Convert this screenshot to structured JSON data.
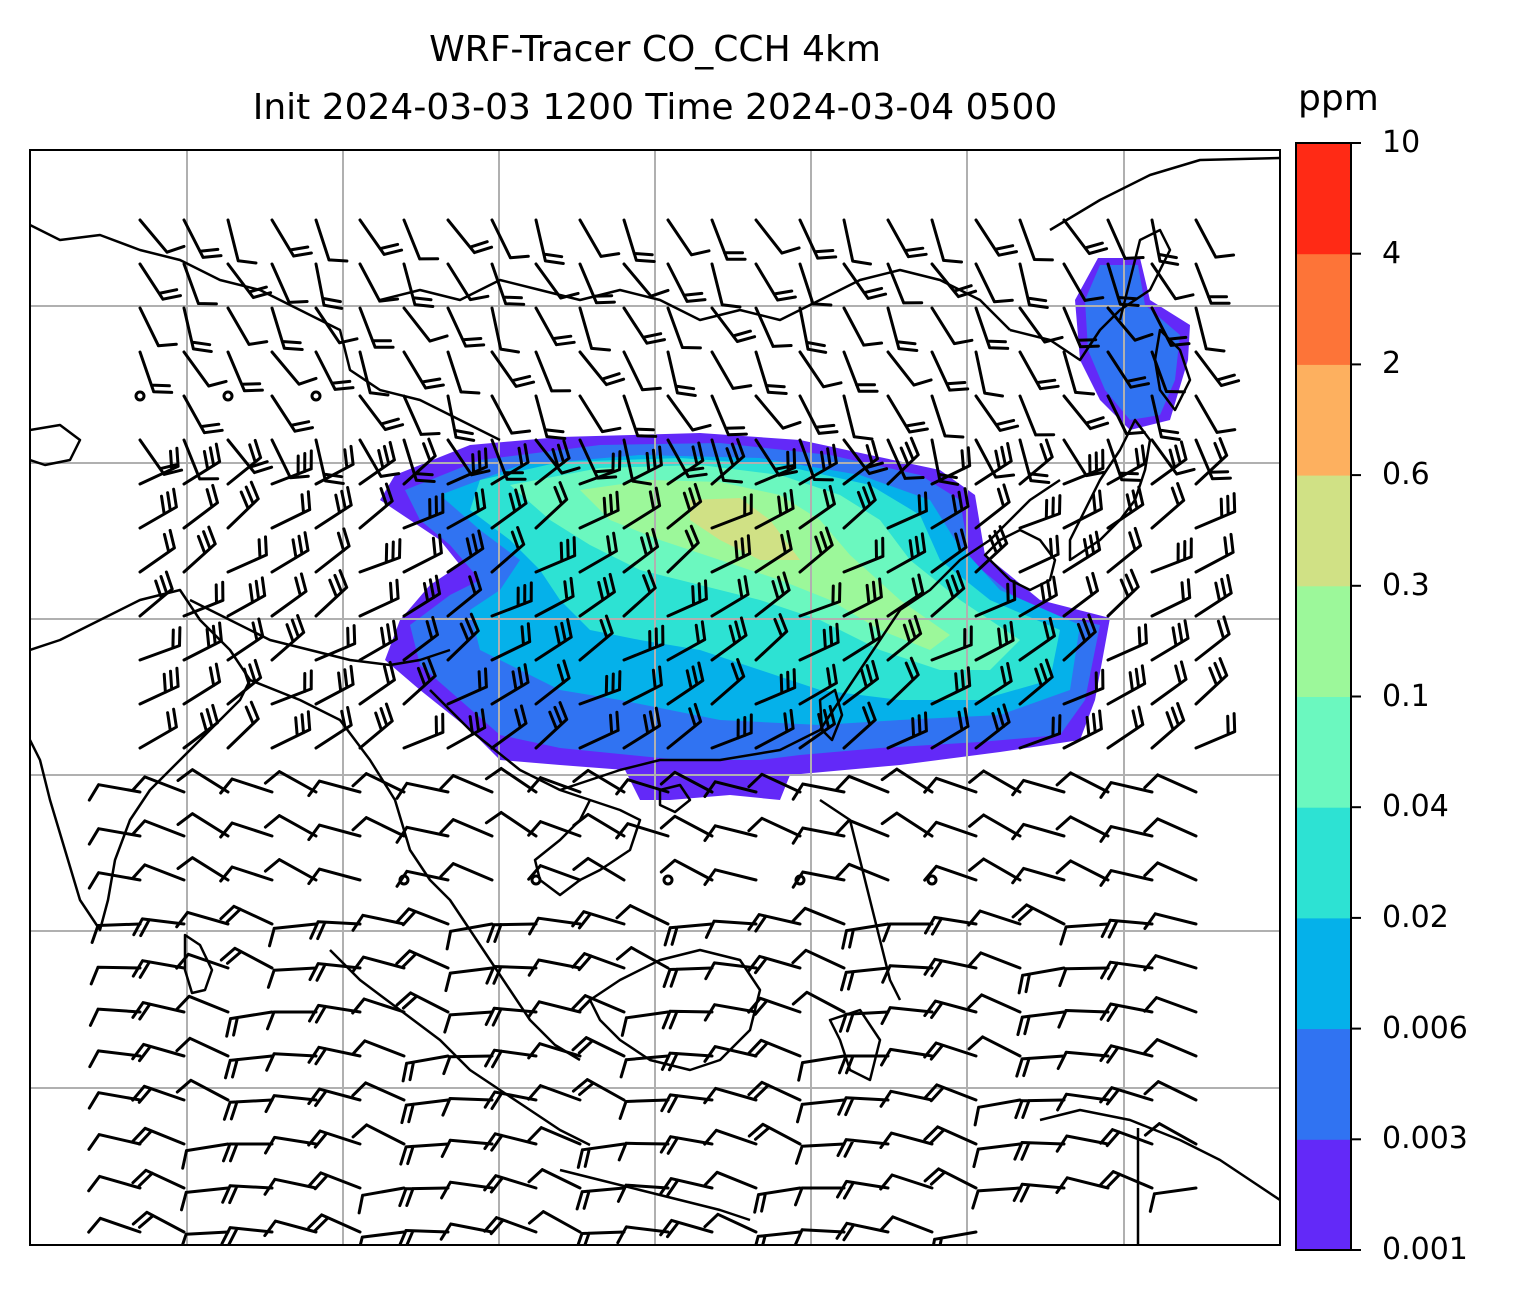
{
  "title": {
    "line1": "WRF-Tracer CO_CCH 4km",
    "line2": "Init 2024-03-03 1200 Time 2024-03-04 0500"
  },
  "colorbar": {
    "unit": "ppm",
    "levels": [
      "0.001",
      "0.003",
      "0.006",
      "0.02",
      "0.04",
      "0.1",
      "0.3",
      "0.6",
      "2",
      "4",
      "10"
    ],
    "colors": [
      "#6329f8",
      "#3073f2",
      "#05b1ea",
      "#2de2d3",
      "#6bf8bf",
      "#9cf89a",
      "#d0e185",
      "#fdb05f",
      "#fd7438",
      "#ff2a15"
    ]
  },
  "map": {
    "projection_grid": "on",
    "grid_color": "#b0b0b0",
    "coastline_color": "#000000",
    "wind_barbs": "on"
  }
}
